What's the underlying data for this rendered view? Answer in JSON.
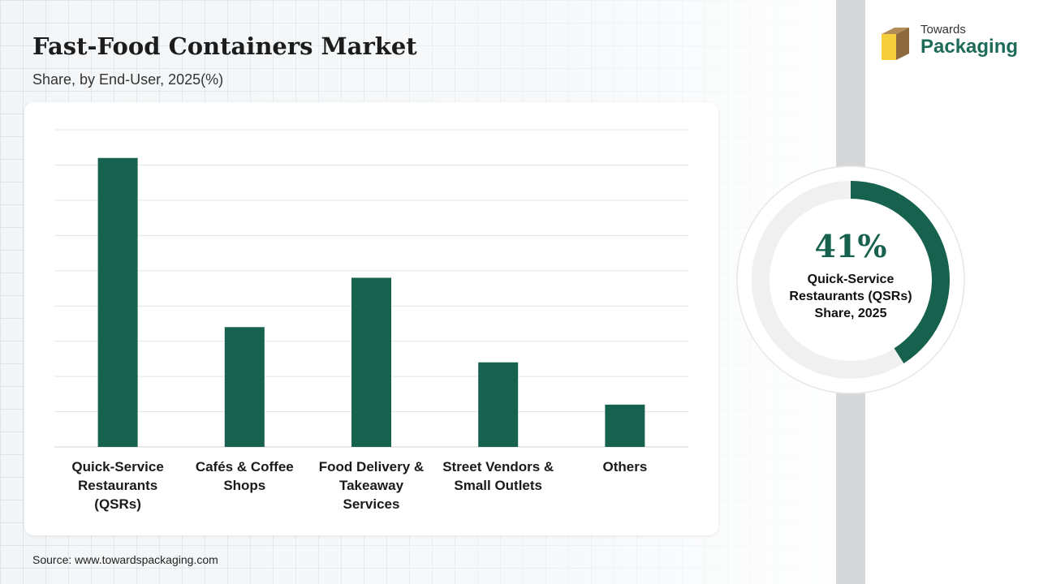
{
  "header": {
    "title": "Fast-Food Containers Market",
    "subtitle": "Share, by End-User, 2025(%)"
  },
  "brand": {
    "line1": "Towards",
    "line2": "Packaging",
    "icon": "box-icon"
  },
  "chart_data": {
    "type": "bar",
    "title": "Fast-Food Containers Market",
    "subtitle": "Share, by End-User, 2025(%)",
    "categories": [
      "Quick-Service Restaurants (QSRs)",
      "Cafés & Coffee Shops",
      "Food Delivery & Takeaway Services",
      "Street Vendors & Small Outlets",
      "Others"
    ],
    "category_lines": [
      [
        "Quick-Service",
        "Restaurants",
        "(QSRs)"
      ],
      [
        "Cafés & Coffee",
        "Shops"
      ],
      [
        "Food Delivery &",
        "Takeaway",
        "Services"
      ],
      [
        "Street Vendors &",
        "Small Outlets"
      ],
      [
        "Others"
      ]
    ],
    "values": [
      41,
      17,
      24,
      12,
      6
    ],
    "ylim": [
      0,
      45
    ],
    "grid": true,
    "color": "#17614f"
  },
  "highlight": {
    "value": "41%",
    "percent": 41,
    "label_lines": [
      "Quick-Service",
      "Restaurants (QSRs)",
      "Share, 2025"
    ],
    "color": "#17614f",
    "track_color": "#f0f0f0"
  },
  "footer": {
    "source": "Source: www.towardspackaging.com"
  }
}
